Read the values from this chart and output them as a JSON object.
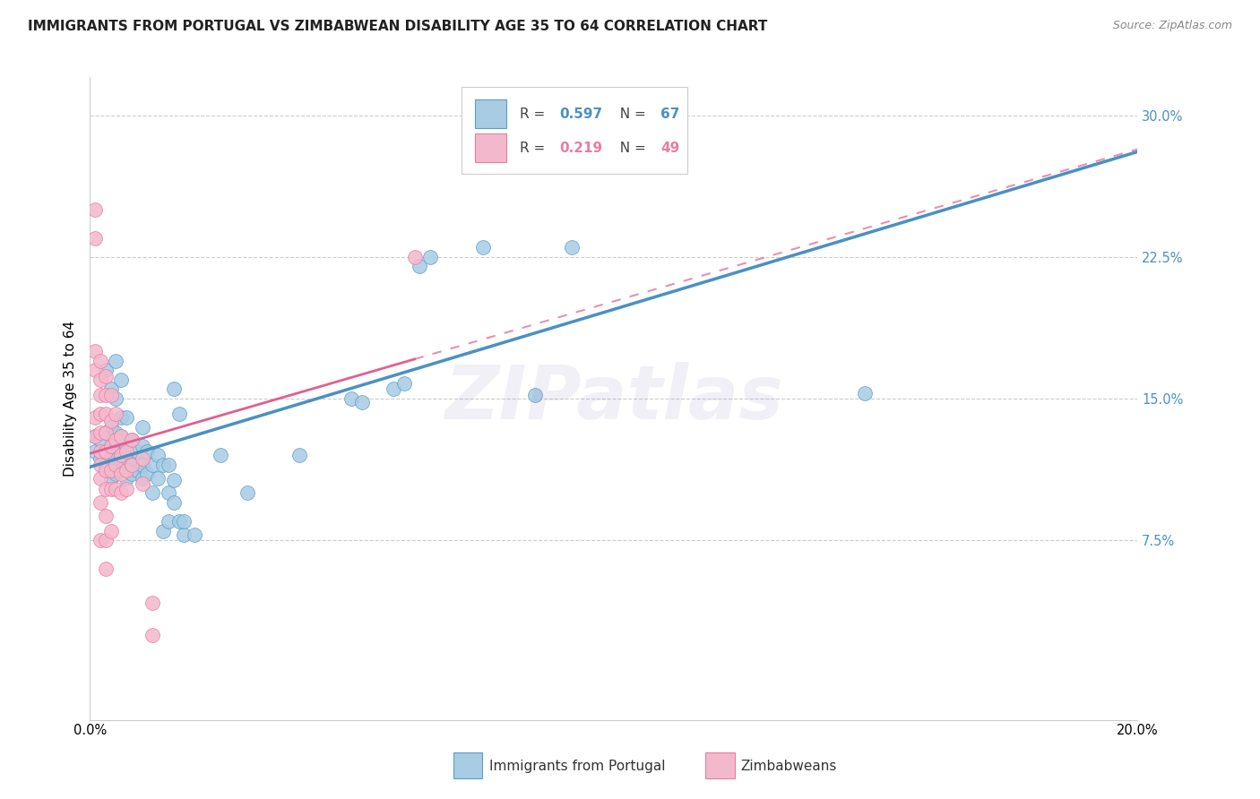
{
  "title": "IMMIGRANTS FROM PORTUGAL VS ZIMBABWEAN DISABILITY AGE 35 TO 64 CORRELATION CHART",
  "source": "Source: ZipAtlas.com",
  "ylabel_label": "Disability Age 35 to 64",
  "xlim": [
    0.0,
    0.2
  ],
  "ylim": [
    -0.02,
    0.32
  ],
  "yticks_right": [
    0.075,
    0.15,
    0.225,
    0.3
  ],
  "ytick_labels_right": [
    "7.5%",
    "15.0%",
    "22.5%",
    "30.0%"
  ],
  "blue_color": "#a8cce4",
  "pink_color": "#f4b8cc",
  "blue_edge_color": "#5a9ec9",
  "pink_edge_color": "#e87da0",
  "blue_line_color": "#4a90c4",
  "pink_line_color": "#e06090",
  "background_color": "#ffffff",
  "grid_color": "#cccccc",
  "blue_scatter": [
    [
      0.001,
      0.122
    ],
    [
      0.001,
      0.13
    ],
    [
      0.002,
      0.118
    ],
    [
      0.002,
      0.128
    ],
    [
      0.003,
      0.115
    ],
    [
      0.003,
      0.122
    ],
    [
      0.003,
      0.132
    ],
    [
      0.003,
      0.165
    ],
    [
      0.004,
      0.108
    ],
    [
      0.004,
      0.118
    ],
    [
      0.004,
      0.125
    ],
    [
      0.004,
      0.135
    ],
    [
      0.004,
      0.155
    ],
    [
      0.005,
      0.11
    ],
    [
      0.005,
      0.118
    ],
    [
      0.005,
      0.125
    ],
    [
      0.005,
      0.132
    ],
    [
      0.005,
      0.15
    ],
    [
      0.005,
      0.17
    ],
    [
      0.006,
      0.112
    ],
    [
      0.006,
      0.118
    ],
    [
      0.006,
      0.125
    ],
    [
      0.006,
      0.13
    ],
    [
      0.006,
      0.14
    ],
    [
      0.006,
      0.16
    ],
    [
      0.007,
      0.108
    ],
    [
      0.007,
      0.118
    ],
    [
      0.007,
      0.125
    ],
    [
      0.007,
      0.14
    ],
    [
      0.008,
      0.11
    ],
    [
      0.008,
      0.118
    ],
    [
      0.008,
      0.128
    ],
    [
      0.009,
      0.112
    ],
    [
      0.009,
      0.122
    ],
    [
      0.01,
      0.108
    ],
    [
      0.01,
      0.115
    ],
    [
      0.01,
      0.125
    ],
    [
      0.01,
      0.135
    ],
    [
      0.011,
      0.11
    ],
    [
      0.011,
      0.122
    ],
    [
      0.012,
      0.1
    ],
    [
      0.012,
      0.115
    ],
    [
      0.013,
      0.108
    ],
    [
      0.013,
      0.12
    ],
    [
      0.014,
      0.08
    ],
    [
      0.014,
      0.115
    ],
    [
      0.015,
      0.085
    ],
    [
      0.015,
      0.1
    ],
    [
      0.015,
      0.115
    ],
    [
      0.016,
      0.095
    ],
    [
      0.016,
      0.107
    ],
    [
      0.016,
      0.155
    ],
    [
      0.017,
      0.085
    ],
    [
      0.017,
      0.142
    ],
    [
      0.018,
      0.078
    ],
    [
      0.018,
      0.085
    ],
    [
      0.02,
      0.078
    ],
    [
      0.025,
      0.12
    ],
    [
      0.03,
      0.1
    ],
    [
      0.04,
      0.12
    ],
    [
      0.05,
      0.15
    ],
    [
      0.052,
      0.148
    ],
    [
      0.058,
      0.155
    ],
    [
      0.06,
      0.158
    ],
    [
      0.063,
      0.22
    ],
    [
      0.065,
      0.225
    ],
    [
      0.075,
      0.23
    ],
    [
      0.085,
      0.152
    ],
    [
      0.092,
      0.23
    ],
    [
      0.098,
      0.295
    ],
    [
      0.148,
      0.153
    ]
  ],
  "pink_scatter": [
    [
      0.001,
      0.25
    ],
    [
      0.001,
      0.235
    ],
    [
      0.001,
      0.175
    ],
    [
      0.001,
      0.165
    ],
    [
      0.001,
      0.14
    ],
    [
      0.001,
      0.13
    ],
    [
      0.002,
      0.17
    ],
    [
      0.002,
      0.16
    ],
    [
      0.002,
      0.152
    ],
    [
      0.002,
      0.142
    ],
    [
      0.002,
      0.132
    ],
    [
      0.002,
      0.122
    ],
    [
      0.002,
      0.115
    ],
    [
      0.002,
      0.108
    ],
    [
      0.002,
      0.095
    ],
    [
      0.002,
      0.075
    ],
    [
      0.003,
      0.162
    ],
    [
      0.003,
      0.152
    ],
    [
      0.003,
      0.142
    ],
    [
      0.003,
      0.132
    ],
    [
      0.003,
      0.122
    ],
    [
      0.003,
      0.112
    ],
    [
      0.003,
      0.102
    ],
    [
      0.003,
      0.088
    ],
    [
      0.003,
      0.075
    ],
    [
      0.003,
      0.06
    ],
    [
      0.004,
      0.152
    ],
    [
      0.004,
      0.138
    ],
    [
      0.004,
      0.125
    ],
    [
      0.004,
      0.112
    ],
    [
      0.004,
      0.102
    ],
    [
      0.004,
      0.08
    ],
    [
      0.005,
      0.142
    ],
    [
      0.005,
      0.128
    ],
    [
      0.005,
      0.115
    ],
    [
      0.005,
      0.102
    ],
    [
      0.006,
      0.13
    ],
    [
      0.006,
      0.12
    ],
    [
      0.006,
      0.11
    ],
    [
      0.006,
      0.1
    ],
    [
      0.007,
      0.122
    ],
    [
      0.007,
      0.112
    ],
    [
      0.007,
      0.102
    ],
    [
      0.008,
      0.128
    ],
    [
      0.008,
      0.115
    ],
    [
      0.01,
      0.118
    ],
    [
      0.01,
      0.105
    ],
    [
      0.012,
      0.042
    ],
    [
      0.012,
      0.025
    ],
    [
      0.062,
      0.225
    ]
  ],
  "title_fontsize": 11,
  "axis_fontsize": 11,
  "tick_fontsize": 10.5,
  "watermark_alpha": 0.12
}
